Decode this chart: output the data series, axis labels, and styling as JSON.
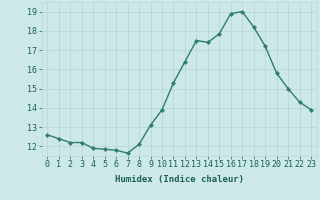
{
  "xlabel": "Humidex (Indice chaleur)",
  "ylabel": "",
  "x": [
    0,
    1,
    2,
    3,
    4,
    5,
    6,
    7,
    8,
    9,
    10,
    11,
    12,
    13,
    14,
    15,
    16,
    17,
    18,
    19,
    20,
    21,
    22,
    23
  ],
  "y": [
    12.6,
    12.4,
    12.2,
    12.2,
    11.9,
    11.85,
    11.8,
    11.65,
    12.1,
    13.1,
    13.9,
    15.3,
    16.4,
    17.5,
    17.4,
    17.85,
    18.9,
    19.0,
    18.2,
    17.2,
    15.8,
    15.0,
    14.3,
    13.9
  ],
  "line_color": "#2e7d6e",
  "marker": "D",
  "marker_size": 2.2,
  "line_width": 1.0,
  "bg_color": "#cce9e7",
  "grid_color": "#b8d8d6",
  "tick_label_color": "#1a5f5a",
  "ylim": [
    11.5,
    19.5
  ],
  "yticks": [
    12,
    13,
    14,
    15,
    16,
    17,
    18,
    19
  ],
  "xticks": [
    0,
    1,
    2,
    3,
    4,
    5,
    6,
    7,
    8,
    9,
    10,
    11,
    12,
    13,
    14,
    15,
    16,
    17,
    18,
    19,
    20,
    21,
    22,
    23
  ],
  "xlabel_fontsize": 6.5,
  "tick_fontsize": 6.0
}
